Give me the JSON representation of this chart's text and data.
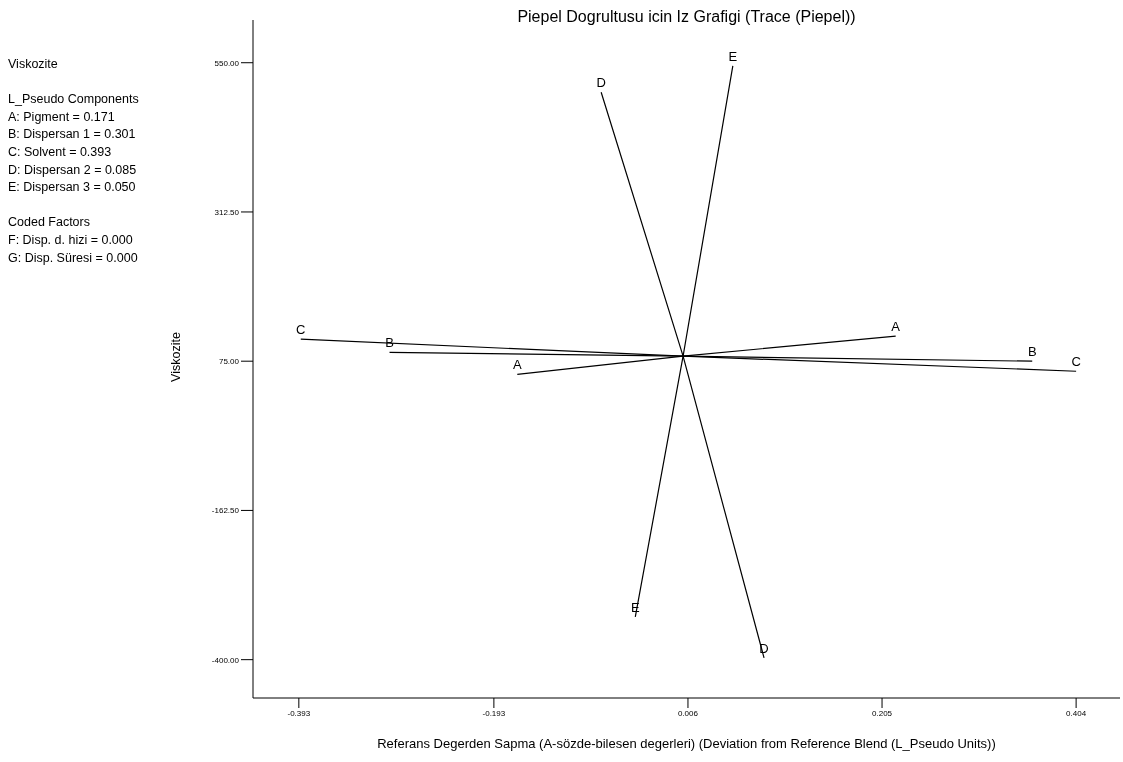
{
  "chart_data": {
    "type": "line",
    "title": "Piepel Dogrultusu icin Iz Grafigi (Trace (Piepel))",
    "xlabel": "Referans Degerden Sapma (A-sözde-bilesen degerleri) (Deviation from Reference Blend (L_Pseudo Units))",
    "ylabel": "Viskozite",
    "annotations": [
      "Viskozite",
      "L_Pseudo Components",
      "A: Pigment = 0.171",
      "B: Dispersan 1 = 0.301",
      "C: Solvent = 0.393",
      "D: Dispersan 2 = 0.085",
      "E: Dispersan 3 = 0.050",
      "Coded Factors",
      "F: Disp. d. hizi = 0.000",
      "G: Disp. Süresi = 0.000"
    ],
    "series": [
      {
        "name": "A",
        "color": "#000000",
        "x": [
          -0.169,
          0.001,
          0.219
        ],
        "values": [
          54,
          83,
          115
        ]
      },
      {
        "name": "B",
        "color": "#000000",
        "x": [
          -0.3,
          0.001,
          0.359
        ],
        "values": [
          89,
          83,
          75
        ]
      },
      {
        "name": "C",
        "color": "#000000",
        "x": [
          -0.391,
          0.001,
          0.404
        ],
        "values": [
          110,
          83,
          59
        ]
      },
      {
        "name": "D",
        "color": "#000000",
        "x": [
          -0.083,
          0.001,
          0.084
        ],
        "values": [
          503,
          83,
          -397
        ]
      },
      {
        "name": "E",
        "color": "#000000",
        "x": [
          -0.048,
          0.001,
          0.052
        ],
        "values": [
          -332,
          83,
          545
        ]
      }
    ],
    "xlim": [
      -0.44,
      0.449
    ],
    "xticks": [
      -0.393,
      -0.193,
      0.006,
      0.205,
      0.404
    ],
    "ylim": [
      -461,
      618
    ],
    "yticks": [
      {
        "value": -400,
        "label": "-400.00"
      },
      {
        "value": -162.5,
        "label": "-162.50"
      },
      {
        "value": 75,
        "label": "75.00"
      },
      {
        "value": 312.5,
        "label": "312.50"
      },
      {
        "value": 550,
        "label": "550.00"
      }
    ],
    "grid": false,
    "legend": false,
    "marker": "none",
    "line_style": "solid"
  }
}
